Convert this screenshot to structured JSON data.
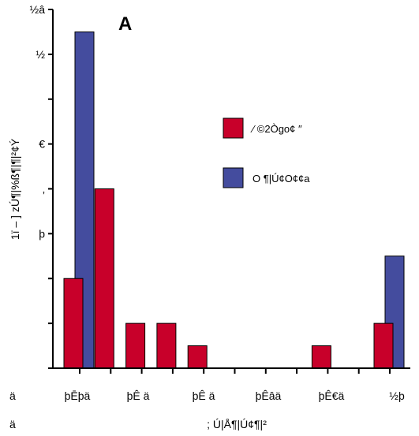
{
  "chart_data": {
    "type": "bar",
    "panel_label": "A",
    "ylabel": "1ï – ] zÚ¶|%ß¶|¶|²¢Ý",
    "xlabel": "; Ú|Å¶|Ú¢¶|²",
    "x_corner_labels": [
      "ä",
      "ä"
    ],
    "ylim": [
      0,
      16
    ],
    "y_ticks": [
      {
        "value": 16,
        "label": "½â"
      },
      {
        "value": 14,
        "label": "½"
      },
      {
        "value": 12,
        "label": ""
      },
      {
        "value": 10,
        "label": "€"
      },
      {
        "value": 8,
        "label": "‚"
      },
      {
        "value": 6,
        "label": "þ"
      },
      {
        "value": 4,
        "label": ""
      },
      {
        "value": 2,
        "label": ""
      },
      {
        "value": 0,
        "label": ""
      }
    ],
    "categories": [
      "1",
      "2",
      "3",
      "4",
      "5",
      "6",
      "7",
      "8",
      "9",
      "10",
      "11"
    ],
    "x_tick_labels": [
      "þĒþä",
      "þÊ ä",
      "þÊ ä",
      "þÊâä",
      "þÊ€ä",
      "½þ"
    ],
    "legend_position": "right",
    "series": [
      {
        "name": "⁄ ©2Ògo¢ ″",
        "color": "#c8002a",
        "values": [
          4,
          8,
          2,
          2,
          1,
          0,
          0,
          0,
          1,
          0,
          2
        ]
      },
      {
        "name": "O ¶|Ú¢O¢¢a",
        "color": "#444c9e",
        "values": [
          15,
          0,
          0,
          0,
          0,
          0,
          0,
          0,
          0,
          0,
          5
        ]
      }
    ]
  }
}
